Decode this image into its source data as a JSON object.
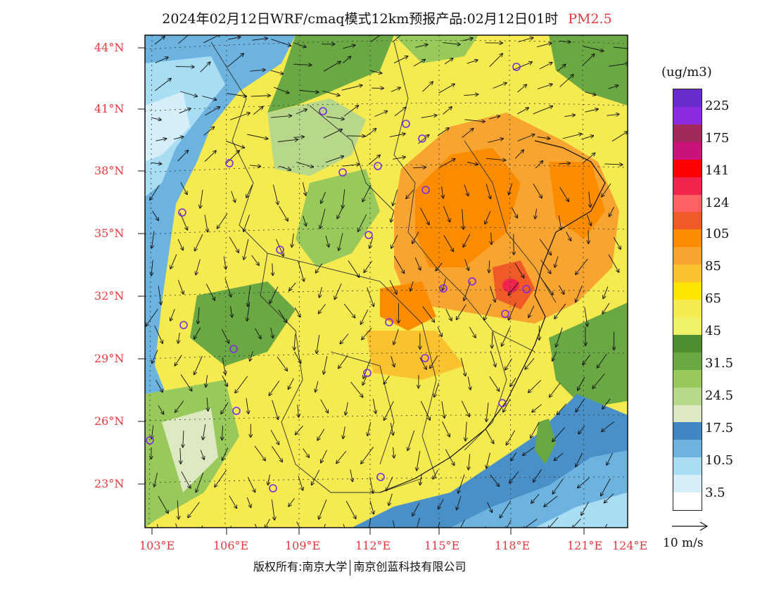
{
  "title": {
    "main": "2024年02月12日WRF/cmaq模式12km预报产品:02月12日01时",
    "species": "PM2.5"
  },
  "legend": {
    "unit": "(ug/m3)",
    "colors": [
      "#ffffff",
      "#d6eef8",
      "#a8ddf4",
      "#6db3e0",
      "#3f86c2",
      "#dde9c1",
      "#b7d88a",
      "#98c95a",
      "#69a842",
      "#4d8f30",
      "#eef26a",
      "#f5ea50",
      "#ffe600",
      "#f9c22e",
      "#f7a430",
      "#fb8c00",
      "#f05a28",
      "#ff6262",
      "#f0244d",
      "#ff0000",
      "#c8137d",
      "#a0285a",
      "#8a2be2",
      "#6a2bcc"
    ],
    "labels": [
      "3.5",
      "10.5",
      "17.5",
      "24.5",
      "31.5",
      "45",
      "65",
      "85",
      "105",
      "124",
      "141",
      "175",
      "225"
    ]
  },
  "axes": {
    "latitudes": [
      "44°N",
      "41°N",
      "38°N",
      "35°N",
      "32°N",
      "29°N",
      "26°N",
      "23°N"
    ],
    "longitudes": [
      "103°E",
      "106°E",
      "109°E",
      "112°E",
      "115°E",
      "118°E",
      "121°E",
      "124°E"
    ]
  },
  "vector_legend": "10 m/s",
  "copyright": {
    "part1": "版权所有:南京大学",
    "part2": "南京创蓝科技有限公司"
  },
  "colors": {
    "accent": "#e8383d",
    "sea": "#4a90c8",
    "land_clean": "#f5ea50",
    "land_green": "#69a842",
    "land_orange": "#f7a430"
  },
  "stations": 26
}
